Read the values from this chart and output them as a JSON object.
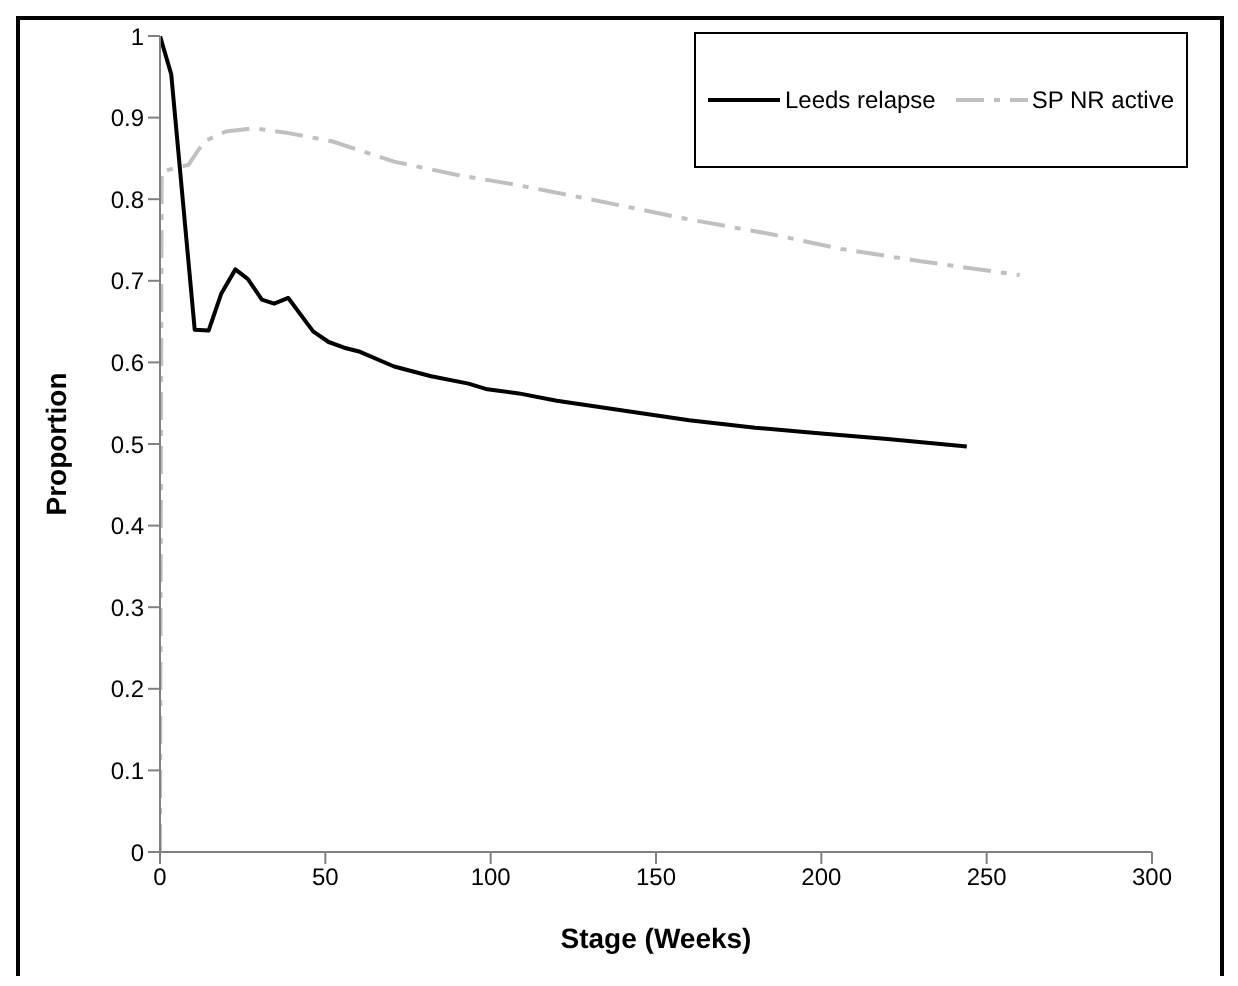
{
  "chart_data": {
    "type": "line",
    "xlabel": "Stage (Weeks)",
    "ylabel": "Proportion",
    "xlim": [
      0,
      300
    ],
    "xticks": [
      0,
      50,
      100,
      150,
      200,
      250,
      300
    ],
    "ylim": [
      0,
      1
    ],
    "yticks": [
      0,
      0.1,
      0.2,
      0.3,
      0.4,
      0.5,
      0.6,
      0.7,
      0.8,
      0.9,
      1
    ],
    "grid": false,
    "legend": "top right",
    "marker": "none",
    "series": [
      {
        "name": "Leeds relapse",
        "color": "#000000",
        "line_style": "solid",
        "x": [
          0,
          3.4,
          10.5,
          14.7,
          18.5,
          22.8,
          26.6,
          30.8,
          34.5,
          38.8,
          46.3,
          51,
          55.7,
          60.5,
          70.8,
          82,
          93.3,
          99,
          108.5,
          120,
          140,
          160,
          180,
          200,
          220,
          244
        ],
        "values": [
          1,
          0.953,
          0.64,
          0.639,
          0.684,
          0.714,
          0.702,
          0.677,
          0.672,
          0.679,
          0.638,
          0.625,
          0.618,
          0.613,
          0.595,
          0.583,
          0.574,
          0.567,
          0.562,
          0.553,
          0.541,
          0.529,
          0.52,
          0.513,
          0.506,
          0.497
        ]
      },
      {
        "name": "SP NR active",
        "color": "#c0c0c0",
        "line_style": "dashed",
        "x": [
          0,
          0.5,
          8.6,
          13.4,
          19.9,
          28.4,
          38.8,
          52,
          70.8,
          89.6,
          108.5,
          130,
          159,
          185,
          206,
          230,
          260
        ],
        "values": [
          0,
          0.834,
          0.842,
          0.871,
          0.883,
          0.887,
          0.881,
          0.871,
          0.846,
          0.83,
          0.817,
          0.8,
          0.776,
          0.757,
          0.739,
          0.724,
          0.707
        ]
      }
    ]
  }
}
